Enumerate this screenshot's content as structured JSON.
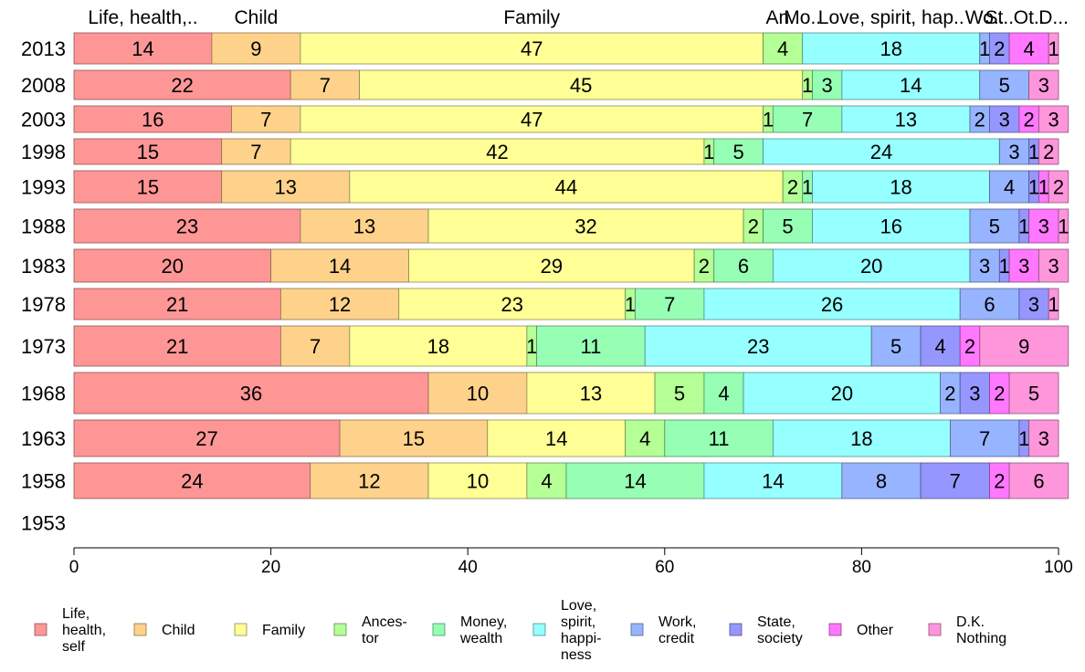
{
  "chart_data": {
    "type": "bar",
    "orientation": "horizontal",
    "stacked": true,
    "xlim": [
      0,
      100
    ],
    "x_ticks": [
      "0",
      "20",
      "40",
      "60",
      "80",
      "100"
    ],
    "grid": false,
    "legend_position": "bottom",
    "top_labels": [
      "Life, health,..",
      "Child",
      "Family",
      "An..",
      "Mo..",
      "Love, spirit, hap..",
      "Wo..",
      "St..",
      "Ot..",
      "D..."
    ],
    "series": [
      {
        "name": "Life, health, self",
        "legend_lines": [
          "Life,",
          "health,",
          "self"
        ],
        "color": "#ff9696"
      },
      {
        "name": "Child",
        "legend_lines": [
          "Child"
        ],
        "color": "#ffd28c"
      },
      {
        "name": "Family",
        "legend_lines": [
          "Family"
        ],
        "color": "#ffff96"
      },
      {
        "name": "Ances-tor",
        "legend_lines": [
          "Ances-",
          "tor"
        ],
        "color": "#b4ff96"
      },
      {
        "name": "Money, wealth",
        "legend_lines": [
          "Money,",
          "wealth"
        ],
        "color": "#96ffb4"
      },
      {
        "name": "Love, spirit, happiness",
        "legend_lines": [
          "Love,",
          "spirit,",
          "happi-",
          "ness"
        ],
        "color": "#96ffff"
      },
      {
        "name": "Work, credit",
        "legend_lines": [
          "Work,",
          "credit"
        ],
        "color": "#96b4ff"
      },
      {
        "name": "State, society",
        "legend_lines": [
          "State,",
          "society"
        ],
        "color": "#9696ff"
      },
      {
        "name": "Other",
        "legend_lines": [
          "Other"
        ],
        "color": "#ff78ff"
      },
      {
        "name": "D.K. Nothing",
        "legend_lines": [
          "D.K.",
          "Nothing"
        ],
        "color": "#ff96dc"
      }
    ],
    "rows": [
      {
        "label": "2013",
        "values": [
          14,
          9,
          47,
          4,
          0,
          18,
          1,
          2,
          4,
          1
        ]
      },
      {
        "label": "2008",
        "values": [
          22,
          7,
          45,
          1,
          3,
          14,
          5,
          0,
          0,
          3
        ]
      },
      {
        "label": "2003",
        "values": [
          16,
          7,
          47,
          1,
          7,
          13,
          2,
          3,
          2,
          3
        ]
      },
      {
        "label": "1998",
        "values": [
          15,
          7,
          42,
          1,
          5,
          24,
          3,
          1,
          0,
          2
        ]
      },
      {
        "label": "1993",
        "values": [
          15,
          13,
          44,
          2,
          1,
          18,
          4,
          1,
          1,
          2
        ]
      },
      {
        "label": "1988",
        "values": [
          23,
          13,
          32,
          2,
          5,
          16,
          5,
          1,
          3,
          1
        ]
      },
      {
        "label": "1983",
        "values": [
          20,
          14,
          29,
          2,
          6,
          20,
          3,
          1,
          3,
          3
        ]
      },
      {
        "label": "1978",
        "values": [
          21,
          12,
          23,
          1,
          7,
          26,
          6,
          3,
          0,
          1
        ]
      },
      {
        "label": "1973",
        "values": [
          21,
          7,
          18,
          1,
          11,
          23,
          5,
          4,
          2,
          9
        ]
      },
      {
        "label": "1968",
        "values": [
          36,
          10,
          13,
          5,
          4,
          20,
          2,
          3,
          2,
          5
        ]
      },
      {
        "label": "1963",
        "values": [
          27,
          15,
          14,
          4,
          11,
          18,
          7,
          1,
          0,
          3
        ]
      },
      {
        "label": "1958",
        "values": [
          24,
          12,
          10,
          4,
          14,
          14,
          8,
          7,
          2,
          6
        ]
      },
      {
        "label": "1953",
        "values": []
      }
    ]
  }
}
